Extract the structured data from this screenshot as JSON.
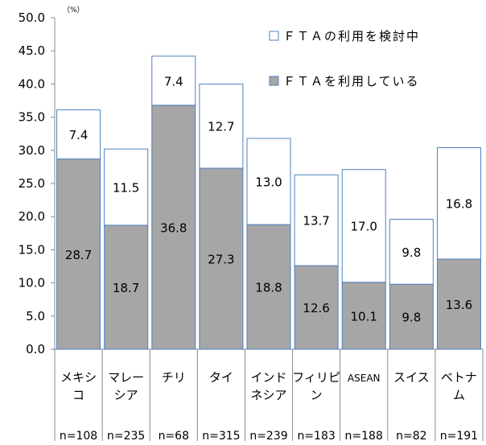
{
  "chart_data": {
    "type": "bar",
    "stacked": true,
    "unit_label": "（%）",
    "ylim": [
      0,
      50
    ],
    "y_ticks": [
      "0.0",
      "5.0",
      "10.0",
      "15.0",
      "20.0",
      "25.0",
      "30.0",
      "35.0",
      "40.0",
      "45.0",
      "50.0"
    ],
    "categories": [
      {
        "name": [
          "メキシ",
          "コ"
        ],
        "n": "n=108"
      },
      {
        "name": [
          "マレー",
          "シア"
        ],
        "n": "n=235"
      },
      {
        "name": [
          "チリ"
        ],
        "n": "n=68"
      },
      {
        "name": [
          "タイ"
        ],
        "n": "n=315"
      },
      {
        "name": [
          "インド",
          "ネシア"
        ],
        "n": "n=239"
      },
      {
        "name": [
          "フィリピ",
          "ン"
        ],
        "n": "n=183"
      },
      {
        "name": [
          "ASEAN"
        ],
        "n": "n=188"
      },
      {
        "name": [
          "スイス"
        ],
        "n": "n=82"
      },
      {
        "name": [
          "ベトナ",
          "ム"
        ],
        "n": "n=191"
      }
    ],
    "series": [
      {
        "name": "ＦＴＡを利用している",
        "color": "#a6a6a6",
        "values": [
          28.7,
          18.7,
          36.8,
          27.3,
          18.8,
          12.6,
          10.1,
          9.8,
          13.6
        ],
        "labels": [
          "28.7",
          "18.7",
          "36.8",
          "27.3",
          "18.8",
          "12.6",
          "10.1",
          "9.8",
          "13.6"
        ]
      },
      {
        "name": "ＦＴＡの利用を検討中",
        "color": "#ffffff",
        "values": [
          7.4,
          11.5,
          7.4,
          12.7,
          13.0,
          13.7,
          17.0,
          9.8,
          16.8
        ],
        "labels": [
          "7.4",
          "11.5",
          "7.4",
          "12.7",
          "13.0",
          "13.7",
          "17.0",
          "9.8",
          "16.8"
        ]
      }
    ],
    "legend": [
      {
        "label": "ＦＴＡの利用を検討中",
        "color": "#ffffff"
      },
      {
        "label": "ＦＴＡを利用している",
        "color": "#a6a6a6"
      }
    ],
    "border_color": "#4f81bd",
    "grid": false,
    "legend_position": "top-right"
  }
}
